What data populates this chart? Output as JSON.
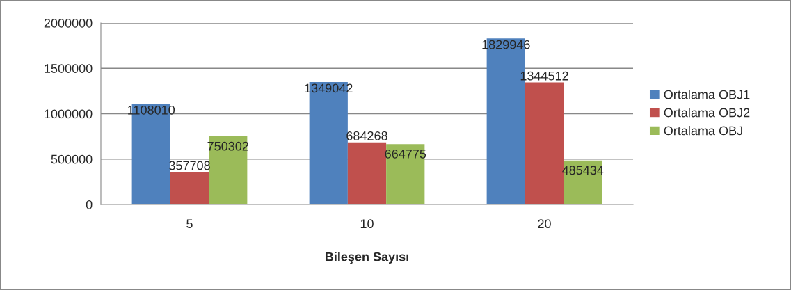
{
  "chart_data": {
    "type": "bar",
    "xlabel": "Bileşen Sayısı",
    "categories": [
      "5",
      "10",
      "20"
    ],
    "series": [
      {
        "name": "Ortalama OBJ1",
        "color": "#4f81bd",
        "values": [
          1108010,
          1349042,
          1829946
        ]
      },
      {
        "name": "Ortalama OBJ2",
        "color": "#c0504d",
        "values": [
          357708,
          684268,
          1344512
        ]
      },
      {
        "name": "Ortalama OBJ",
        "color": "#9bbb59",
        "values": [
          750302,
          664775,
          485434
        ]
      }
    ],
    "ylim": [
      0,
      2000000
    ],
    "yticks": [
      0,
      500000,
      1000000,
      1500000,
      2000000
    ],
    "grid": "y",
    "legend": "right",
    "data_labels": true
  }
}
